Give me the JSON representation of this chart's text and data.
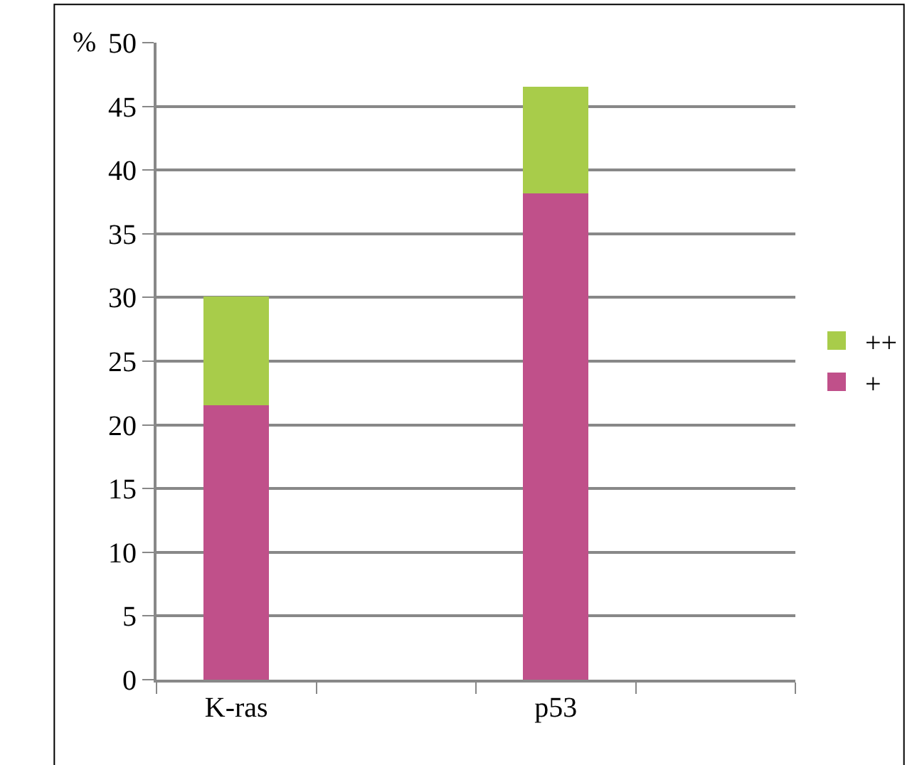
{
  "chart_data": {
    "type": "bar",
    "stacked": true,
    "ylabel": "%",
    "categories": [
      "K-ras",
      null,
      "p53",
      null
    ],
    "series": [
      {
        "name": "+",
        "color": "#c0508a",
        "values": [
          21.6,
          null,
          38.2,
          null
        ]
      },
      {
        "name": "++",
        "color": "#a8cc4a",
        "values": [
          8.4,
          null,
          8.3,
          null
        ]
      }
    ],
    "ylim": [
      0,
      50
    ],
    "yticks": [
      0,
      5,
      10,
      15,
      20,
      25,
      30,
      35,
      40,
      45,
      50
    ],
    "grid": "y",
    "legend": "right"
  }
}
